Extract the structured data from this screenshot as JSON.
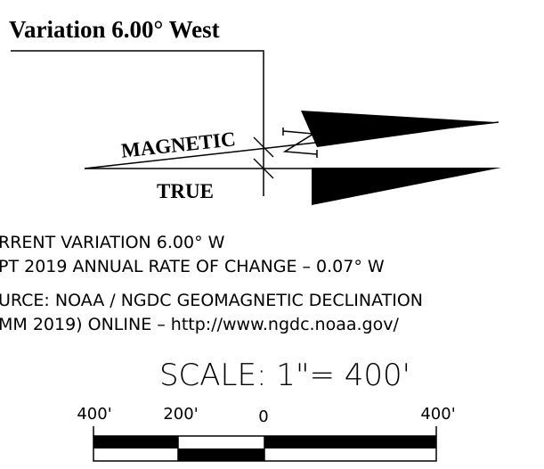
{
  "header": {
    "title": "Variation 6.00° West"
  },
  "arrows": {
    "magnetic": "MAGNETIC",
    "true": "TRUE"
  },
  "notes": [
    "RRENT VARIATION 6.00° W",
    "PT 2019 ANNUAL RATE OF CHANGE – 0.07° W",
    "URCE: NOAA / NGDC GEOMAGNETIC DECLINATION",
    "MM 2019) ONLINE – http://www.ngdc.noaa.gov/"
  ],
  "scale": {
    "title": "SCALE:  1\"= 400'",
    "labels": [
      "400'",
      "200'",
      "0",
      "400'"
    ]
  }
}
